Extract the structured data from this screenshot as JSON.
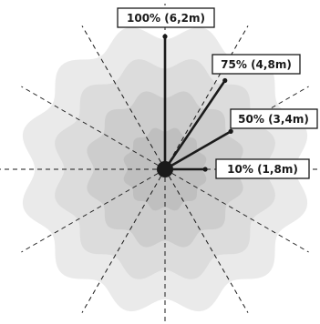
{
  "diagram": {
    "type": "radial-detection-range",
    "dashed_lines": 12,
    "colors": {
      "zone_100": "#eaeaea",
      "zone_75": "#dcdcdc",
      "zone_50": "#cdcdcd",
      "zone_10": "#bfbfbf",
      "arrow": "#1a1a1a",
      "dash": "#1a1a1a",
      "label_border": "#1a1a1a"
    },
    "zones": [
      {
        "id": "zone-100",
        "label": "100% (6,2m)",
        "percent": 100,
        "distance_m": 6.2
      },
      {
        "id": "zone-75",
        "label": "75% (4,8m)",
        "percent": 75,
        "distance_m": 4.8
      },
      {
        "id": "zone-50",
        "label": "50% (3,4m)",
        "percent": 50,
        "distance_m": 3.4
      },
      {
        "id": "zone-10",
        "label": "10% (1,8m)",
        "percent": 10,
        "distance_m": 1.8
      }
    ]
  }
}
